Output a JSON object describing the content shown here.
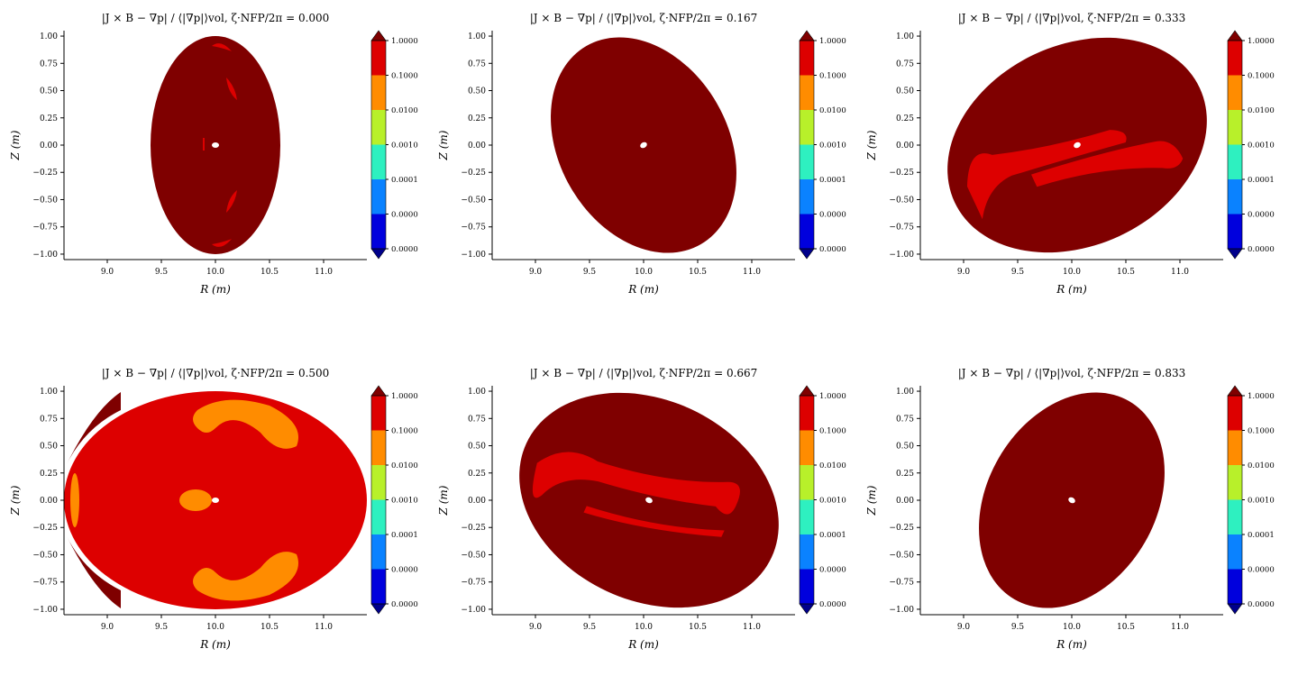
{
  "figure": {
    "panels": [
      {
        "title": "|J × B − ∇p| / ⟨|∇p|⟩vol, ζ·NFP/2π = 0.000",
        "zeta": "0.000"
      },
      {
        "title": "|J × B − ∇p| / ⟨|∇p|⟩vol, ζ·NFP/2π = 0.167",
        "zeta": "0.167"
      },
      {
        "title": "|J × B − ∇p| / ⟨|∇p|⟩vol, ζ·NFP/2π = 0.333",
        "zeta": "0.333"
      },
      {
        "title": "|J × B − ∇p| / ⟨|∇p|⟩vol, ζ·NFP/2π = 0.500",
        "zeta": "0.500"
      },
      {
        "title": "|J × B − ∇p| / ⟨|∇p|⟩vol, ζ·NFP/2π = 0.667",
        "zeta": "0.667"
      },
      {
        "title": "|J × B − ∇p| / ⟨|∇p|⟩vol, ζ·NFP/2π = 0.833",
        "zeta": "0.833"
      }
    ]
  },
  "chart_data": {
    "type": "heatmap",
    "xlabel": "R (m)",
    "ylabel": "Z (m)",
    "xlim": [
      8.6,
      11.4
    ],
    "ylim": [
      -1.05,
      1.05
    ],
    "x_ticks": [
      "9.0",
      "9.5",
      "10.0",
      "10.5",
      "11.0"
    ],
    "x_tick_values": [
      9.0,
      9.5,
      10.0,
      10.5,
      11.0
    ],
    "y_ticks": [
      "1.00",
      "0.75",
      "0.50",
      "0.25",
      "0.00",
      "−0.25",
      "−0.50",
      "−0.75",
      "−1.00"
    ],
    "y_tick_values": [
      1.0,
      0.75,
      0.5,
      0.25,
      0.0,
      -0.25,
      -0.5,
      -0.75,
      -1.0
    ],
    "colorbar": {
      "labels": [
        "1.0000",
        "0.1000",
        "0.0100",
        "0.0010",
        "0.0001",
        "0.0000",
        "0.0000"
      ],
      "colors": [
        "#dd0000",
        "#ff8c00",
        "#b8f02a",
        "#2ef0c0",
        "#0a82ff",
        "#0000dd"
      ],
      "over_color": "#7f0000",
      "under_color": "#00008b"
    },
    "cross_sections": [
      {
        "zeta": 0.0,
        "center_R": 10.0,
        "center_Z": 0.0,
        "a": 0.6,
        "b": 1.0,
        "tilt_deg": 0,
        "level": "above-1"
      },
      {
        "zeta": 0.167,
        "center_R": 10.0,
        "center_Z": 0.0,
        "a": 0.78,
        "b": 1.05,
        "tilt_deg": -30,
        "level": "above-1"
      },
      {
        "zeta": 0.333,
        "center_R": 10.05,
        "center_Z": 0.0,
        "a": 1.25,
        "b": 0.92,
        "tilt_deg": -25,
        "level": "above-1"
      },
      {
        "zeta": 0.5,
        "center_R": 10.0,
        "center_Z": 0.0,
        "a": 1.4,
        "b": 1.0,
        "tilt_deg": 0,
        "level": "0.1-1"
      },
      {
        "zeta": 0.667,
        "center_R": 10.05,
        "center_Z": 0.0,
        "a": 1.25,
        "b": 0.92,
        "tilt_deg": 25,
        "level": "above-1"
      },
      {
        "zeta": 0.833,
        "center_R": 10.0,
        "center_Z": 0.0,
        "a": 0.78,
        "b": 1.05,
        "tilt_deg": 30,
        "level": "above-1"
      }
    ]
  }
}
